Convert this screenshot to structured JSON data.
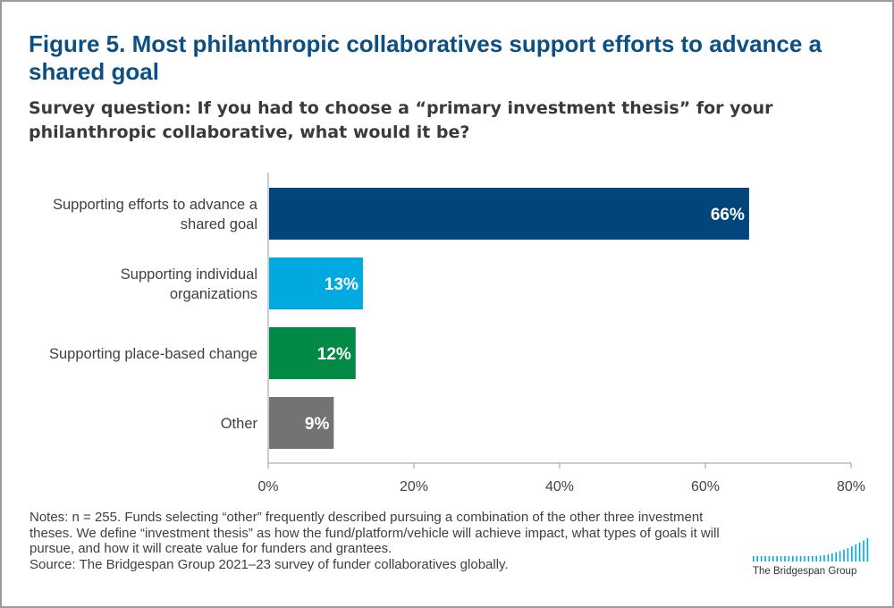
{
  "figure": {
    "title": "Figure 5. Most philanthropic collaboratives support efforts to advance a shared goal",
    "subtitle": "Survey question: If you had to choose a “primary investment thesis” for your philanthropic collaborative, what would it be?"
  },
  "chart_data": {
    "type": "bar",
    "orientation": "horizontal",
    "categories": [
      [
        "Supporting efforts to advance a",
        "shared goal"
      ],
      [
        "Supporting individual",
        "organizations"
      ],
      [
        "Supporting place-based change"
      ],
      [
        "Other"
      ]
    ],
    "values": [
      66,
      13,
      12,
      9
    ],
    "value_labels": [
      "66%",
      "13%",
      "12%",
      "9%"
    ],
    "colors": [
      "#00457c",
      "#00a9e0",
      "#008a45",
      "#737373"
    ],
    "xlim": [
      0,
      80
    ],
    "x_ticks": [
      0,
      20,
      40,
      60,
      80
    ],
    "x_tick_labels": [
      "0%",
      "20%",
      "40%",
      "60%",
      "80%"
    ],
    "grid": false,
    "legend": "none"
  },
  "notes": {
    "text": "Notes: n = 255. Funds selecting “other” frequently described pursuing a combination of the other three investment theses. We define “investment thesis” as how the fund/platform/vehicle will achieve impact, what types of goals it will pursue, and how it will create value for funders and grantees.",
    "source": "Source: The Bridgespan Group 2021–23 survey of funder collaboratives globally."
  },
  "logo": {
    "text": "The Bridgespan Group",
    "color": "#00a9e0"
  }
}
